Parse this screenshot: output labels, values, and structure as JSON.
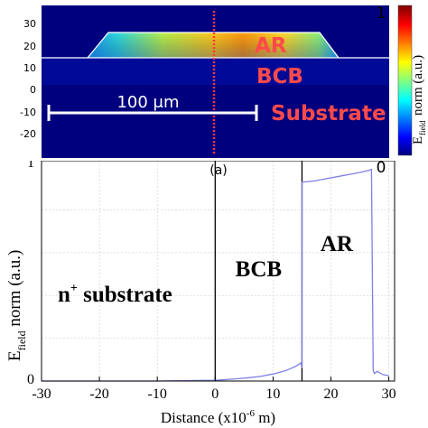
{
  "panel_a": {
    "caption": "(a)",
    "y_ticks": [
      "30",
      "20",
      "10",
      "0",
      "-10",
      "-20"
    ],
    "labels": {
      "ar": "AR",
      "bcb": "BCB",
      "substrate": "Substrate"
    },
    "scale_bar": "100 μm",
    "colorbar": {
      "top": "1",
      "bottom": "0",
      "label_main": "norm (a.u.)",
      "label_E": "E",
      "label_sub": "field"
    },
    "colors": {
      "background": "#00007f",
      "red_label": "#ff4a4a",
      "marker": "#ff3a3a"
    }
  },
  "chart_data": {
    "type": "line",
    "xlabel": "Distance (x10",
    "xlabel_exp": "-6",
    "xlabel_tail": " m)",
    "ylabel_E": "E",
    "ylabel_sub": "field",
    "ylabel_tail": " norm (a.u.)",
    "xlim": [
      -30,
      31
    ],
    "ylim": [
      0,
      1.03
    ],
    "x_ticks": [
      -30,
      -20,
      -10,
      0,
      10,
      20,
      30
    ],
    "x_tick_labels": [
      "-30",
      "-20",
      "-10",
      "0",
      "10",
      "20",
      "30"
    ],
    "y_tick_labels": [
      "0",
      "1"
    ],
    "y_ticks": [
      0,
      1
    ],
    "grid": true,
    "region_boundaries": [
      0,
      15
    ],
    "region_labels": [
      {
        "text_main": "n",
        "text_sup": "+",
        "text_tail": " substrate"
      },
      {
        "text_main": "BCB"
      },
      {
        "text_main": "AR"
      }
    ],
    "series": [
      {
        "color": "#7f7fe6",
        "x": [
          -30,
          -20,
          -10,
          -5,
          0,
          2,
          4,
          6,
          8,
          10,
          12,
          13,
          14,
          14.8,
          15,
          15.02,
          17,
          19,
          21,
          23,
          25,
          26.5,
          27,
          27.3,
          27.5,
          28,
          29,
          30
        ],
        "y": [
          0.0,
          0.0,
          0.0,
          0.002,
          0.004,
          0.007,
          0.011,
          0.016,
          0.023,
          0.033,
          0.047,
          0.058,
          0.07,
          0.085,
          0.06,
          0.93,
          0.935,
          0.945,
          0.955,
          0.965,
          0.975,
          0.985,
          0.99,
          0.05,
          0.035,
          0.045,
          0.03,
          0.025
        ]
      }
    ]
  }
}
